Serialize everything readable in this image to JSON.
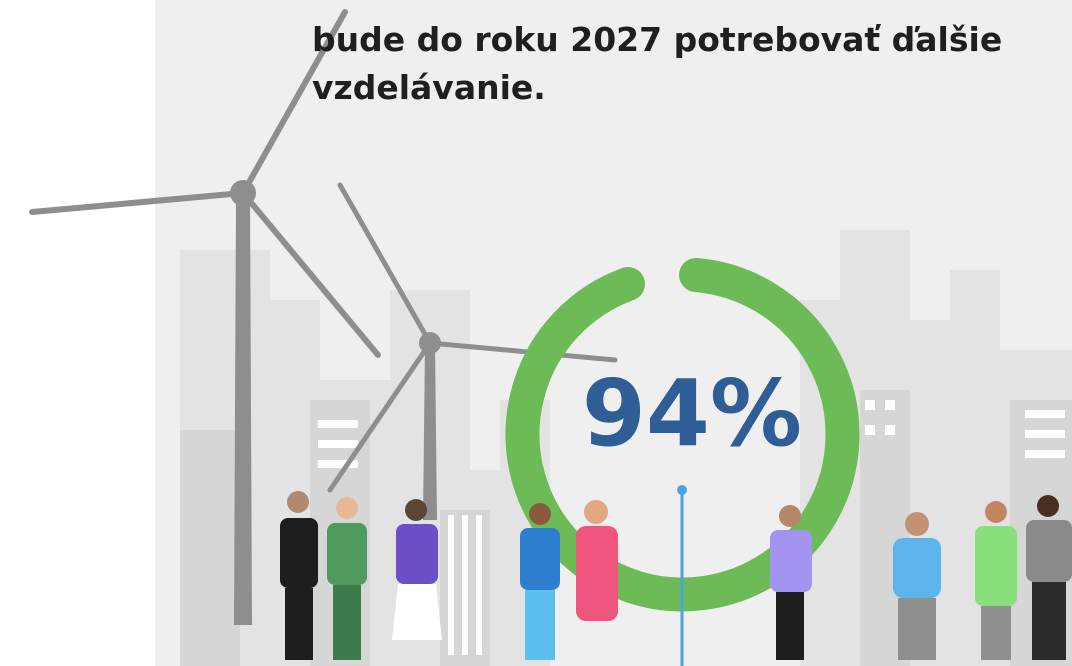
{
  "headline": {
    "lines": [
      "bude do roku 2027 potrebovať ďalšie",
      "vzdelávanie."
    ]
  },
  "stat": {
    "label": "94%"
  }
}
